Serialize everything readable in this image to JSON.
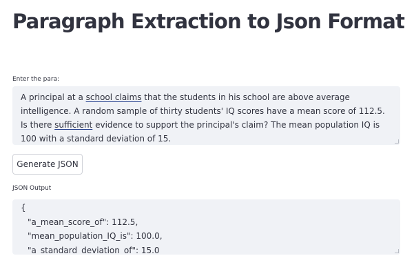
{
  "app": {
    "title": "Paragraph Extraction to Json Format"
  },
  "para_input": {
    "label": "Enter the para:",
    "segments": [
      {
        "text": "A principal at a ",
        "underline": false
      },
      {
        "text": "school claims",
        "underline": true
      },
      {
        "text": " that the students in his school are above average intelligence. A random sample of thirty students' IQ scores have a mean score of 112.5. Is there ",
        "underline": false
      },
      {
        "text": "sufficient",
        "underline": true
      },
      {
        "text": " evidence to support the principal's claim? The mean population IQ is 100 with a standard deviation of 15.",
        "underline": false
      }
    ]
  },
  "generate_button": {
    "label": "Generate JSON"
  },
  "json_output": {
    "label": "JSON Output",
    "lines": [
      "{",
      "\"a_mean_score_of\": 112.5,",
      "\"mean_population_IQ_is\": 100.0,",
      "\"a_standard_deviation_of\": 15.0"
    ]
  }
}
